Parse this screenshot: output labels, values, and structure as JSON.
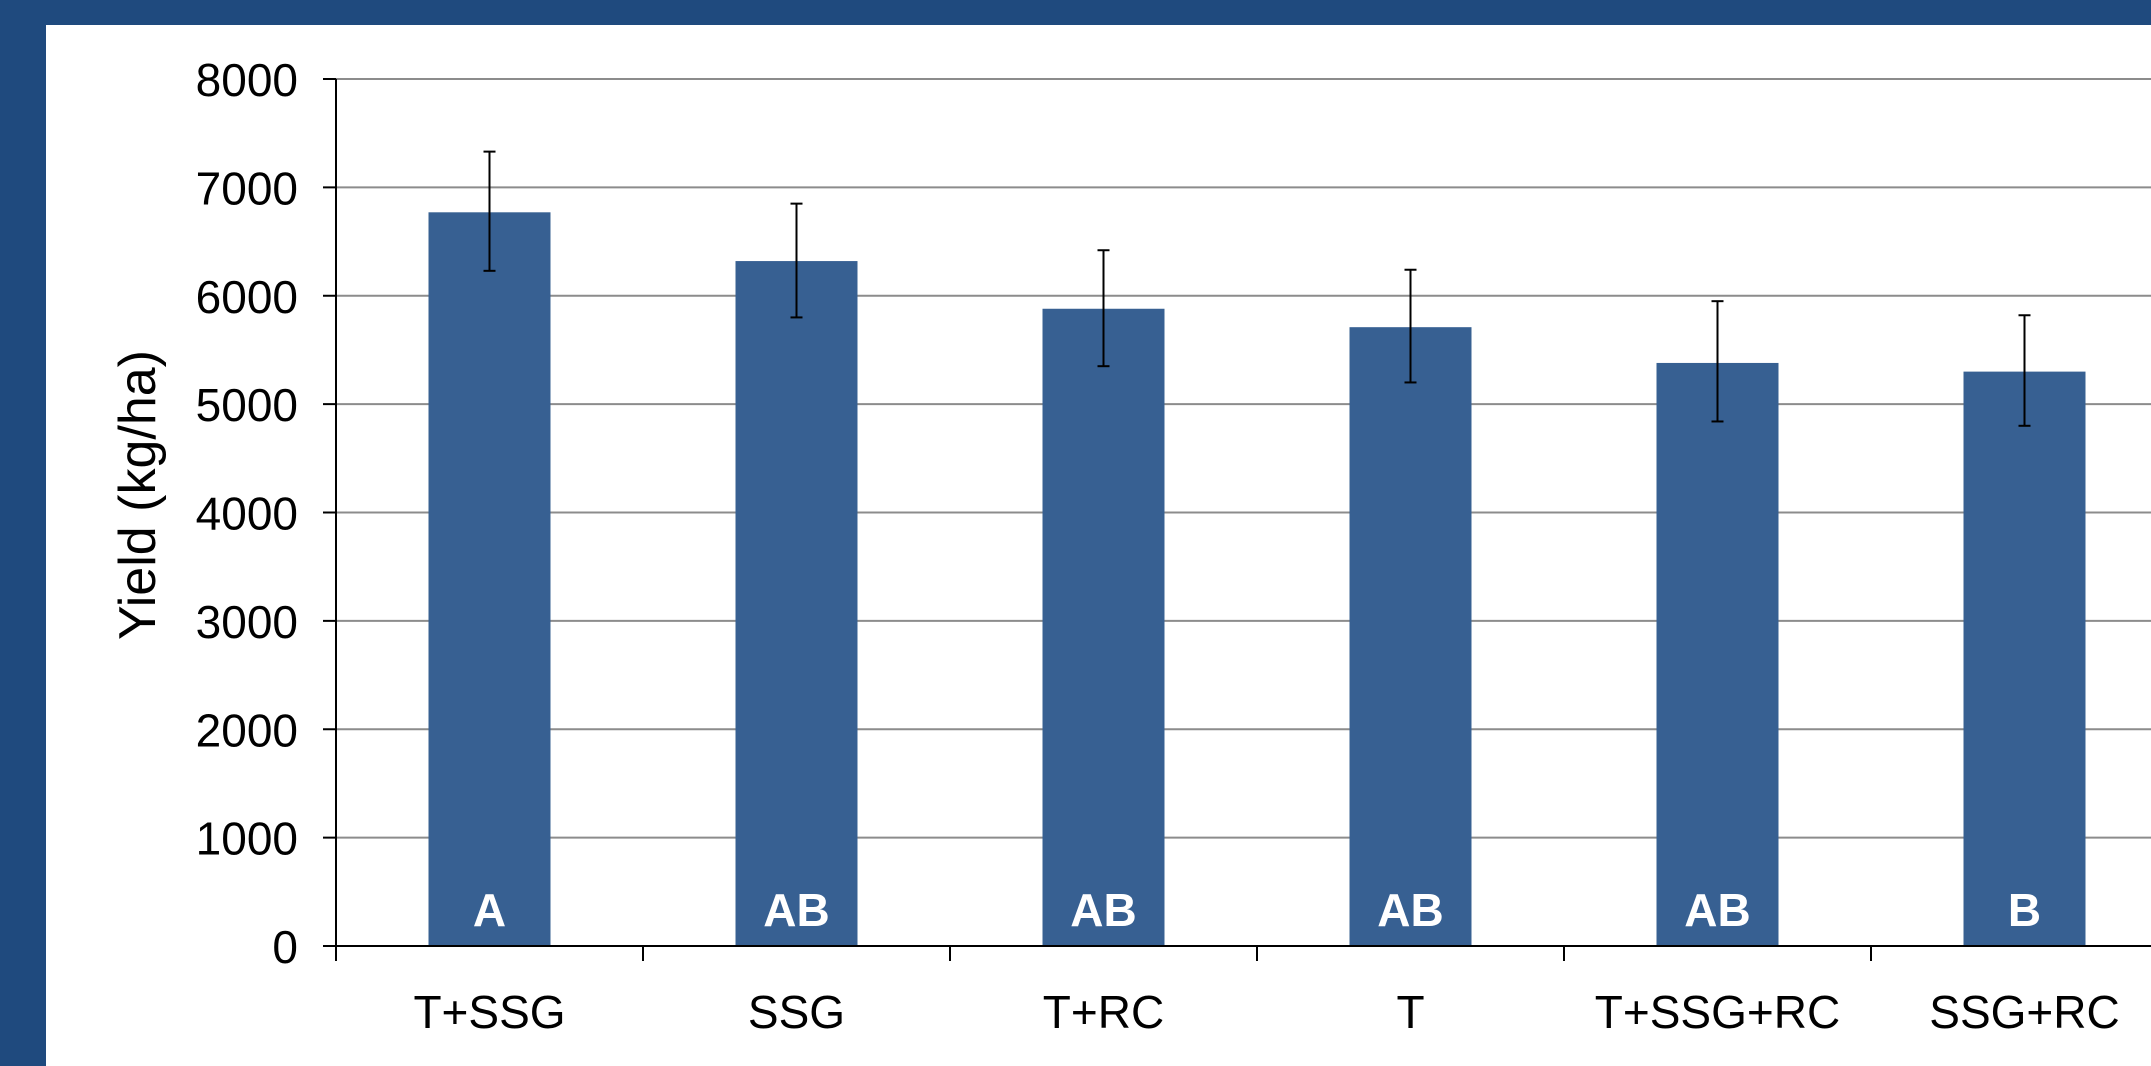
{
  "chart_data": {
    "type": "bar",
    "title": "",
    "xlabel": "",
    "ylabel": "Yield (kg/ha)",
    "ylim": [
      0,
      8000
    ],
    "yticks": [
      0,
      1000,
      2000,
      3000,
      4000,
      5000,
      6000,
      7000,
      8000
    ],
    "grid": true,
    "categories": [
      "T+SSG",
      "SSG",
      "T+RC",
      "T",
      "T+SSG+RC",
      "SSG+RC"
    ],
    "values": [
      6770,
      6320,
      5880,
      5710,
      5380,
      5300
    ],
    "error_low": [
      6230,
      5800,
      5350,
      5200,
      4840,
      4800
    ],
    "error_high": [
      7330,
      6850,
      6420,
      6240,
      5950,
      5820
    ],
    "significance_labels": [
      "A",
      "AB",
      "AB",
      "AB",
      "AB",
      "B"
    ]
  },
  "colors": {
    "frame": "#1f4a7e",
    "bar": "#376092",
    "grid": "#8c8c8c",
    "axis": "#000000",
    "bar_label": "#ffffff"
  }
}
